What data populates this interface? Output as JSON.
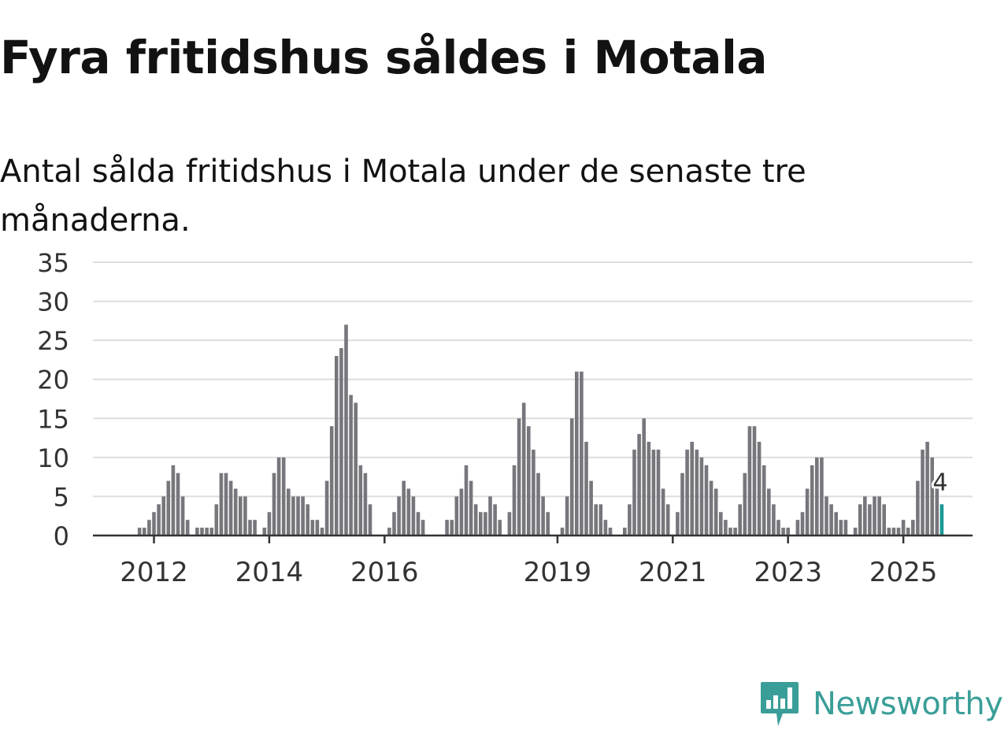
{
  "title": "Fyra fritidshus såldes i Motala",
  "subtitle": "Antal sålda fritidshus i Motala under de senaste tre månaderna.",
  "brand": {
    "name": "Newsworthy",
    "logo_icon": "bar-chart-speech-bubble-icon"
  },
  "colors": {
    "bar": "#77767c",
    "highlight": "#1a9a96",
    "grid": "#dddddd",
    "axis": "#333333",
    "text": "#333333",
    "brand": "#3a9e98"
  },
  "chart_data": {
    "type": "bar",
    "ylim": [
      0,
      35
    ],
    "yticks": [
      0,
      5,
      10,
      15,
      20,
      25,
      30,
      35
    ],
    "xticks": [
      "2012",
      "2014",
      "2016",
      "2019",
      "2021",
      "2023",
      "2025"
    ],
    "grid": true,
    "highlight_label": "4",
    "series": [
      {
        "values": [
          0,
          0,
          0,
          0,
          0,
          0,
          0,
          0,
          0,
          1,
          1,
          2,
          3,
          4,
          5,
          7,
          9,
          8,
          5,
          2,
          0,
          1,
          1,
          1,
          1,
          4,
          8,
          8,
          7,
          6,
          5,
          5,
          2,
          2,
          0,
          1,
          3,
          8,
          10,
          10,
          6,
          5,
          5,
          5,
          4,
          2,
          2,
          1,
          7,
          14,
          23,
          24,
          27,
          18,
          17,
          9,
          8,
          4,
          0,
          0,
          0,
          1,
          3,
          5,
          7,
          6,
          5,
          3,
          2,
          0,
          0,
          0,
          0,
          2,
          2,
          5,
          6,
          9,
          7,
          4,
          3,
          3,
          5,
          4,
          2,
          0,
          3,
          9,
          15,
          17,
          14,
          11,
          8,
          5,
          3,
          0,
          0,
          1,
          5,
          15,
          21,
          21,
          12,
          7,
          4,
          4,
          2,
          1,
          0,
          0,
          1,
          4,
          11,
          13,
          15,
          12,
          11,
          11,
          6,
          4,
          0,
          3,
          8,
          11,
          12,
          11,
          10,
          9,
          7,
          6,
          3,
          2,
          1,
          1,
          4,
          8,
          14,
          14,
          12,
          9,
          6,
          4,
          2,
          1,
          1,
          0,
          2,
          3,
          6,
          9,
          10,
          10,
          5,
          4,
          3,
          2,
          2,
          0,
          1,
          4,
          5,
          4,
          5,
          5,
          4,
          1,
          1,
          1,
          2,
          1,
          2,
          7,
          11,
          12,
          10,
          6,
          4
        ]
      }
    ]
  }
}
